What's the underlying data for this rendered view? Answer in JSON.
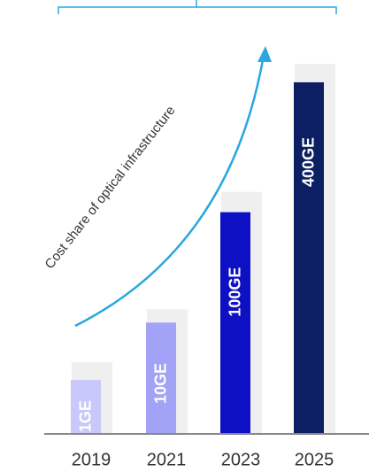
{
  "chart_data": {
    "type": "bar",
    "categories": [
      "2019",
      "2021",
      "2023",
      "2025"
    ],
    "annotation": "Cost share of optical infrastructure",
    "ylim": [
      0,
      420
    ],
    "series": [
      {
        "color": "#efefef",
        "values": [
          80,
          140,
          273,
          418
        ]
      },
      {
        "colors": [
          "#c8c8fa",
          "#a2a2f6",
          "#0e10c4",
          "#0b1f62"
        ],
        "values": [
          60,
          125,
          250,
          397
        ],
        "bar_labels": [
          "1GE",
          "10GE",
          "100GE",
          "400GE"
        ]
      }
    ]
  }
}
